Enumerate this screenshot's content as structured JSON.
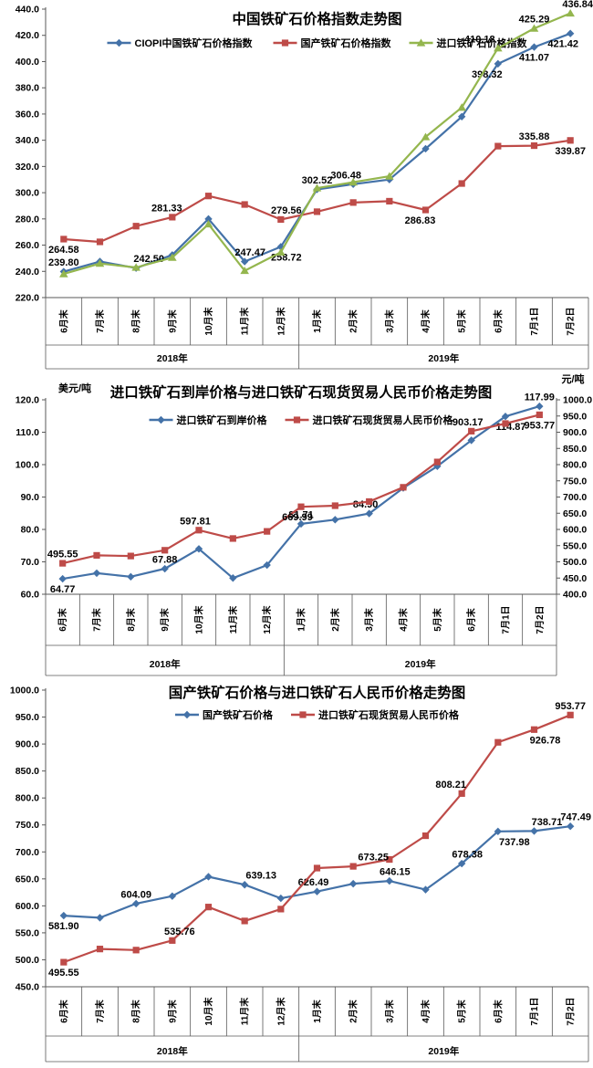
{
  "colors": {
    "ciopi_blue": "#4472A8",
    "domestic_red": "#BE4B48",
    "import_green": "#94B64E",
    "axis_line": "#595959",
    "label_text": "#000000"
  },
  "chart_data": [
    {
      "type": "line",
      "title": "中国铁矿石价格指数走势图",
      "categories": [
        "6月末",
        "7月末",
        "8月末",
        "9月末",
        "10月末",
        "11月末",
        "12月末",
        "1月末",
        "2月末",
        "3月末",
        "4月末",
        "5月末",
        "6月末",
        "7月1日",
        "7月2日"
      ],
      "year_groups": [
        {
          "label": "2018年",
          "span": 7
        },
        {
          "label": "2019年",
          "span": 8
        }
      ],
      "y_axis_left": {
        "min": 220,
        "max": 440,
        "step": 20
      },
      "legend_position": "top",
      "series": [
        {
          "name": "CIOPI中国铁矿石价格指数",
          "color": "#4472A8",
          "marker": "diamond",
          "axis": "left",
          "values": [
            239.8,
            247.5,
            242.5,
            252.5,
            280.0,
            247.47,
            258.72,
            302.52,
            306.48,
            310.0,
            333.5,
            358.0,
            398.32,
            411.07,
            421.42
          ],
          "labels": [
            {
              "i": 0,
              "text": "239.80",
              "pos": "above",
              "dx": 0
            },
            {
              "i": 2,
              "text": "242.50",
              "pos": "above",
              "dx": 14
            },
            {
              "i": 5,
              "text": "247.47",
              "pos": "above",
              "dx": 6
            },
            {
              "i": 6,
              "text": "258.72",
              "pos": "below",
              "dx": 6
            },
            {
              "i": 7,
              "text": "302.52",
              "pos": "above",
              "dx": 0
            },
            {
              "i": 8,
              "text": "306.48",
              "pos": "above",
              "dx": -8
            },
            {
              "i": 12,
              "text": "398.32",
              "pos": "below",
              "dx": -12
            },
            {
              "i": 13,
              "text": "411.07",
              "pos": "below",
              "dx": 0
            },
            {
              "i": 14,
              "text": "421.42",
              "pos": "below",
              "dx": -8
            }
          ]
        },
        {
          "name": "国产铁矿石价格指数",
          "color": "#BE4B48",
          "marker": "square",
          "axis": "left",
          "values": [
            264.58,
            262.5,
            274.5,
            281.33,
            297.5,
            291.0,
            279.56,
            285.5,
            292.5,
            293.5,
            286.83,
            307.0,
            335.5,
            335.88,
            339.87
          ],
          "labels": [
            {
              "i": 0,
              "text": "264.58",
              "pos": "below",
              "dx": 0
            },
            {
              "i": 3,
              "text": "281.33",
              "pos": "above",
              "dx": -6
            },
            {
              "i": 6,
              "text": "279.56",
              "pos": "above",
              "dx": 6
            },
            {
              "i": 10,
              "text": "286.83",
              "pos": "below",
              "dx": -6
            },
            {
              "i": 13,
              "text": "335.88",
              "pos": "above",
              "dx": 0
            },
            {
              "i": 14,
              "text": "339.87",
              "pos": "below",
              "dx": 0
            }
          ]
        },
        {
          "name": "进口铁矿石价格指数",
          "color": "#94B64E",
          "marker": "triangle",
          "axis": "left",
          "values": [
            238.0,
            246.0,
            243.0,
            250.5,
            276.0,
            240.5,
            254.5,
            303.5,
            308.0,
            312.5,
            342.5,
            365.0,
            410.18,
            425.29,
            436.84
          ],
          "labels": [
            {
              "i": 12,
              "text": "410.18",
              "pos": "above",
              "dx": -20
            },
            {
              "i": 13,
              "text": "425.29",
              "pos": "above",
              "dx": 0
            },
            {
              "i": 14,
              "text": "436.84",
              "pos": "above",
              "dx": 8
            }
          ]
        }
      ]
    },
    {
      "type": "line",
      "title": "进口铁矿石到岸价格与进口铁矿石现货贸易人民币价格走势图",
      "categories": [
        "6月末",
        "7月末",
        "8月末",
        "9月末",
        "10月末",
        "11月末",
        "12月末",
        "1月末",
        "2月末",
        "3月末",
        "4月末",
        "5月末",
        "6月末",
        "7月1日",
        "7月2日"
      ],
      "year_groups": [
        {
          "label": "2018年",
          "span": 7
        },
        {
          "label": "2019年",
          "span": 8
        }
      ],
      "y_axis_left": {
        "min": 60,
        "max": 120,
        "step": 10,
        "unit": "美元/吨"
      },
      "y_axis_right": {
        "min": 400,
        "max": 1000,
        "step": 50,
        "unit": "元/吨"
      },
      "series": [
        {
          "name": "进口铁矿石到岸价格",
          "color": "#4472A8",
          "marker": "diamond",
          "axis": "left",
          "values": [
            64.77,
            66.5,
            65.4,
            67.88,
            74.0,
            65.0,
            69.0,
            81.71,
            83.0,
            84.9,
            92.8,
            99.5,
            107.5,
            114.87,
            117.99
          ],
          "labels": [
            {
              "i": 0,
              "text": "64.77",
              "pos": "below",
              "dx": 0
            },
            {
              "i": 3,
              "text": "67.88",
              "pos": "above",
              "dx": 0
            },
            {
              "i": 7,
              "text": "81.71",
              "pos": "above",
              "dx": 0
            },
            {
              "i": 9,
              "text": "84.90",
              "pos": "above",
              "dx": -4
            },
            {
              "i": 13,
              "text": "114.87",
              "pos": "below",
              "dx": 6
            },
            {
              "i": 14,
              "text": "117.99",
              "pos": "above",
              "dx": 0
            }
          ]
        },
        {
          "name": "进口铁矿石现货贸易人民币价格",
          "color": "#BE4B48",
          "marker": "square",
          "axis": "right",
          "values": [
            495.55,
            520.0,
            518.0,
            535.76,
            597.81,
            572.0,
            594.0,
            669.99,
            673.25,
            686.0,
            730.0,
            808.21,
            903.17,
            926.78,
            953.77
          ],
          "labels": [
            {
              "i": 0,
              "text": "495.55",
              "pos": "above",
              "dx": 0
            },
            {
              "i": 4,
              "text": "597.81",
              "pos": "above",
              "dx": -4
            },
            {
              "i": 7,
              "text": "669.99",
              "pos": "below",
              "dx": -4
            },
            {
              "i": 12,
              "text": "903.17",
              "pos": "above",
              "dx": -4
            },
            {
              "i": 14,
              "text": "953.77",
              "pos": "below",
              "dx": 0
            }
          ]
        }
      ]
    },
    {
      "type": "line",
      "title": "国产铁矿石价格与进口铁矿石人民币价格走势图",
      "categories": [
        "6月末",
        "7月末",
        "8月末",
        "9月末",
        "10月末",
        "11月末",
        "12月末",
        "1月末",
        "2月末",
        "3月末",
        "4月末",
        "5月末",
        "6月末",
        "7月1日",
        "7月2日"
      ],
      "year_groups": [
        {
          "label": "2018年",
          "span": 7
        },
        {
          "label": "2019年",
          "span": 8
        }
      ],
      "y_axis_left": {
        "min": 450,
        "max": 1000,
        "step": 50
      },
      "series": [
        {
          "name": "国产铁矿石价格",
          "color": "#4472A8",
          "marker": "diamond",
          "axis": "left",
          "values": [
            581.9,
            578.0,
            604.09,
            618.0,
            654.0,
            639.13,
            614.0,
            626.49,
            641.0,
            646.15,
            630.0,
            678.38,
            737.98,
            738.71,
            747.49
          ],
          "labels": [
            {
              "i": 0,
              "text": "581.90",
              "pos": "below",
              "dx": 0
            },
            {
              "i": 2,
              "text": "604.09",
              "pos": "above",
              "dx": 0
            },
            {
              "i": 5,
              "text": "639.13",
              "pos": "above",
              "dx": 18
            },
            {
              "i": 7,
              "text": "626.49",
              "pos": "above",
              "dx": -4
            },
            {
              "i": 9,
              "text": "646.15",
              "pos": "above",
              "dx": 6
            },
            {
              "i": 11,
              "text": "678.38",
              "pos": "above",
              "dx": 6
            },
            {
              "i": 12,
              "text": "737.98",
              "pos": "below",
              "dx": 18
            },
            {
              "i": 13,
              "text": "738.71",
              "pos": "above",
              "dx": 14
            },
            {
              "i": 14,
              "text": "747.49",
              "pos": "above",
              "dx": 6
            }
          ]
        },
        {
          "name": "进口铁矿石现货贸易人民币价格",
          "color": "#BE4B48",
          "marker": "square",
          "axis": "left",
          "values": [
            495.55,
            520.0,
            518.0,
            535.76,
            597.81,
            572.0,
            594.0,
            669.99,
            673.25,
            686.0,
            730.0,
            808.21,
            903.17,
            926.78,
            953.77
          ],
          "labels": [
            {
              "i": 0,
              "text": "495.55",
              "pos": "below",
              "dx": 0
            },
            {
              "i": 3,
              "text": "535.76",
              "pos": "above",
              "dx": 8
            },
            {
              "i": 8,
              "text": "673.25",
              "pos": "above",
              "dx": 22
            },
            {
              "i": 11,
              "text": "808.21",
              "pos": "above",
              "dx": -12
            },
            {
              "i": 13,
              "text": "926.78",
              "pos": "below",
              "dx": 12
            },
            {
              "i": 14,
              "text": "953.77",
              "pos": "above",
              "dx": 0
            }
          ]
        }
      ]
    }
  ]
}
